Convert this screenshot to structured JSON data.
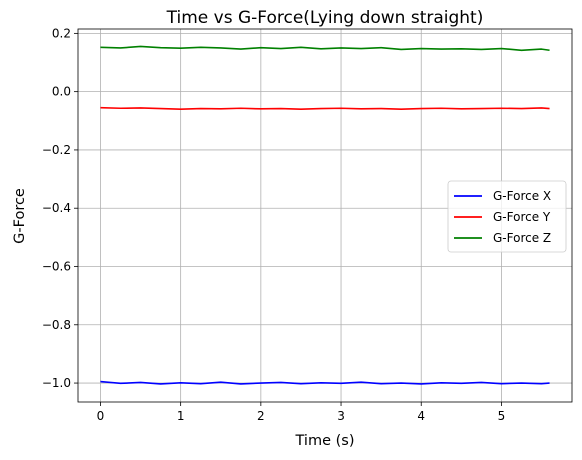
{
  "chart_data": {
    "type": "line",
    "title": "Time vs G-Force(Lying down straight)",
    "xlabel": "Time (s)",
    "ylabel": "G-Force",
    "xlim": [
      -0.28,
      5.88
    ],
    "ylim": [
      -1.065,
      0.215
    ],
    "xticks": [
      0,
      1,
      2,
      3,
      4,
      5
    ],
    "xtick_labels": [
      "0",
      "1",
      "2",
      "3",
      "4",
      "5"
    ],
    "yticks": [
      -1.0,
      -0.8,
      -0.6,
      -0.4,
      -0.2,
      0.0,
      0.2
    ],
    "ytick_labels": [
      "−1.0",
      "−0.8",
      "−0.6",
      "−0.4",
      "−0.2",
      "0.0",
      "0.2"
    ],
    "grid": true,
    "legend_position": "center-right",
    "series": [
      {
        "name": "G-Force X",
        "color": "#0000ff",
        "x": [
          0.0,
          0.25,
          0.5,
          0.75,
          1.0,
          1.25,
          1.5,
          1.75,
          2.0,
          2.25,
          2.5,
          2.75,
          3.0,
          3.25,
          3.5,
          3.75,
          4.0,
          4.25,
          4.5,
          4.75,
          5.0,
          5.25,
          5.5,
          5.6
        ],
        "values": [
          -0.995,
          -1.001,
          -0.998,
          -1.003,
          -0.999,
          -1.002,
          -0.997,
          -1.003,
          -1.0,
          -0.998,
          -1.002,
          -0.999,
          -1.001,
          -0.997,
          -1.002,
          -1.0,
          -1.003,
          -0.999,
          -1.001,
          -0.998,
          -1.002,
          -1.0,
          -1.002,
          -1.0
        ]
      },
      {
        "name": "G-Force Y",
        "color": "#ff0000",
        "x": [
          0.0,
          0.25,
          0.5,
          0.75,
          1.0,
          1.25,
          1.5,
          1.75,
          2.0,
          2.25,
          2.5,
          2.75,
          3.0,
          3.25,
          3.5,
          3.75,
          4.0,
          4.25,
          4.5,
          4.75,
          5.0,
          5.25,
          5.5,
          5.6
        ],
        "values": [
          -0.055,
          -0.057,
          -0.056,
          -0.058,
          -0.06,
          -0.058,
          -0.059,
          -0.057,
          -0.059,
          -0.058,
          -0.06,
          -0.058,
          -0.057,
          -0.059,
          -0.058,
          -0.06,
          -0.058,
          -0.057,
          -0.059,
          -0.058,
          -0.057,
          -0.058,
          -0.056,
          -0.058
        ]
      },
      {
        "name": "G-Force Z",
        "color": "#008000",
        "x": [
          0.0,
          0.25,
          0.5,
          0.75,
          1.0,
          1.25,
          1.5,
          1.75,
          2.0,
          2.25,
          2.5,
          2.75,
          3.0,
          3.25,
          3.5,
          3.75,
          4.0,
          4.25,
          4.5,
          4.75,
          5.0,
          5.25,
          5.5,
          5.6
        ],
        "values": [
          0.152,
          0.15,
          0.155,
          0.151,
          0.149,
          0.152,
          0.15,
          0.146,
          0.151,
          0.148,
          0.152,
          0.147,
          0.15,
          0.148,
          0.151,
          0.145,
          0.148,
          0.146,
          0.147,
          0.145,
          0.148,
          0.142,
          0.146,
          0.142
        ]
      }
    ]
  }
}
